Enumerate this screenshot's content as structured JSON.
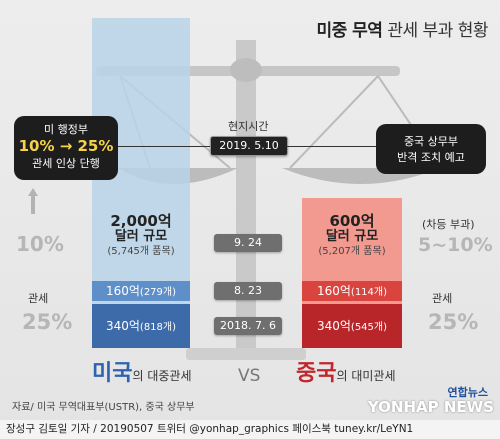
{
  "title": {
    "strong": "미중 무역",
    "rest": "관세 부과 현황"
  },
  "timeline": {
    "header": "현지시간",
    "dates": [
      "2019. 5.10",
      "9. 24",
      "8. 23",
      "2018. 7. 6"
    ]
  },
  "us_action": {
    "line1": "미 행정부",
    "line2": "10% → 25%",
    "line3": "관세 인상 단행"
  },
  "china_action": {
    "line1": "중국 상무부",
    "line2": "반격 조치 예고"
  },
  "us": {
    "total": {
      "amount": "2,000억",
      "unit": "달러 규모",
      "items": "(5,745개 품목)"
    },
    "tier2": {
      "amount": "160억",
      "items": "(279개)"
    },
    "tier1": {
      "amount": "340억",
      "items": "(818개)"
    },
    "rate_top": "10%",
    "rate_side_label": "관세",
    "rate_side": "25%",
    "label_big": "미국",
    "label_small": "의 대중관세"
  },
  "china": {
    "total": {
      "amount": "600억",
      "unit": "달러 규모",
      "items": "(5,207개 품목)"
    },
    "tier2": {
      "amount": "160억",
      "items": "(114개)"
    },
    "tier1": {
      "amount": "340억",
      "items": "(545개)"
    },
    "rate_top_label": "(차등 부과)",
    "rate_top": "5~10%",
    "rate_side_label": "관세",
    "rate_side": "25%",
    "label_big": "중국",
    "label_small": "의 대미관세"
  },
  "vs": "VS",
  "source": "자료/ 미국 무역대표부(USTR), 중국 상무부",
  "logo": {
    "brand": "연합뉴스",
    "wordmark": "YONHAP NEWS"
  },
  "credit": "장성구 김토일 기자 / 20190507   트위터 @yonhap_graphics  페이스북 tuney.kr/LeYN1",
  "colors": {
    "us_blue": "#3d6aa8",
    "us_blue_light": "#5e8fc9",
    "cn_red": "#b8262a",
    "cn_red_light": "#d9443f"
  }
}
